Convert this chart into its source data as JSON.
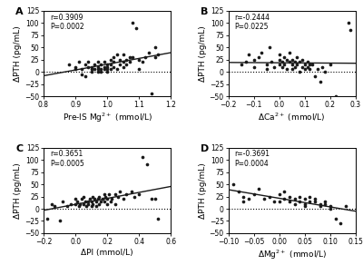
{
  "panels": [
    {
      "label": "A",
      "r": "r=0.3909",
      "p": "P=0.0002",
      "xlabel": "Pre-IS Mg$^{2+}$ (mmol/L)",
      "ylabel": "ΔPTH (pg/mL)",
      "xlim": [
        0.8,
        1.2
      ],
      "ylim": [
        -50,
        125
      ],
      "yticks": [
        -50,
        -25,
        0,
        25,
        50,
        75,
        100,
        125
      ],
      "xticks": [
        0.8,
        0.9,
        1.0,
        1.1,
        1.2
      ],
      "x": [
        0.88,
        0.9,
        0.9,
        0.91,
        0.92,
        0.92,
        0.93,
        0.93,
        0.94,
        0.94,
        0.95,
        0.95,
        0.95,
        0.96,
        0.96,
        0.97,
        0.97,
        0.97,
        0.97,
        0.98,
        0.98,
        0.98,
        0.99,
        0.99,
        0.99,
        1.0,
        1.0,
        1.0,
        1.0,
        1.01,
        1.01,
        1.01,
        1.02,
        1.02,
        1.02,
        1.03,
        1.03,
        1.04,
        1.04,
        1.05,
        1.05,
        1.05,
        1.06,
        1.06,
        1.07,
        1.07,
        1.08,
        1.08,
        1.09,
        1.1,
        1.1,
        1.11,
        1.12,
        1.13,
        1.14,
        1.15,
        1.15,
        1.16
      ],
      "y": [
        15,
        5,
        10,
        20,
        -5,
        5,
        15,
        -10,
        10,
        20,
        0,
        10,
        5,
        15,
        5,
        5,
        20,
        10,
        0,
        15,
        5,
        0,
        10,
        20,
        5,
        15,
        5,
        0,
        10,
        25,
        15,
        5,
        20,
        10,
        30,
        35,
        5,
        25,
        15,
        20,
        35,
        10,
        25,
        15,
        30,
        20,
        30,
        100,
        90,
        25,
        5,
        20,
        30,
        40,
        -45,
        50,
        30,
        35
      ]
    },
    {
      "label": "B",
      "r": "r=-0.2444",
      "p": "P=0.0225",
      "xlabel": "ΔCa$^{2+}$ (mmol/L)",
      "ylabel": "ΔPTH (pg/mL)",
      "xlim": [
        -0.2,
        0.3
      ],
      "ylim": [
        -50,
        125
      ],
      "yticks": [
        -50,
        -25,
        0,
        25,
        50,
        75,
        100,
        125
      ],
      "xticks": [
        -0.2,
        -0.1,
        0.0,
        0.1,
        0.2,
        0.3
      ],
      "x": [
        -0.15,
        -0.13,
        -0.12,
        -0.1,
        -0.1,
        -0.08,
        -0.07,
        -0.05,
        -0.05,
        -0.04,
        -0.03,
        -0.02,
        0.0,
        0.0,
        0.0,
        0.01,
        0.01,
        0.02,
        0.02,
        0.03,
        0.03,
        0.04,
        0.04,
        0.05,
        0.05,
        0.05,
        0.06,
        0.06,
        0.07,
        0.07,
        0.08,
        0.08,
        0.09,
        0.09,
        0.1,
        0.1,
        0.11,
        0.11,
        0.12,
        0.12,
        0.13,
        0.14,
        0.15,
        0.16,
        0.17,
        0.18,
        0.2,
        0.22,
        0.27,
        0.28
      ],
      "y": [
        15,
        20,
        35,
        10,
        25,
        30,
        40,
        15,
        5,
        50,
        20,
        10,
        35,
        15,
        25,
        20,
        10,
        30,
        15,
        25,
        5,
        20,
        40,
        15,
        25,
        5,
        20,
        10,
        30,
        15,
        20,
        0,
        25,
        10,
        15,
        5,
        20,
        10,
        15,
        5,
        15,
        -10,
        5,
        -20,
        10,
        0,
        15,
        -50,
        100,
        85
      ]
    },
    {
      "label": "C",
      "r": "r=0.3651",
      "p": "P=0.0005",
      "xlabel": "ΔPI (mmol/L)",
      "ylabel": "ΔPTH (pg/mL)",
      "xlim": [
        -0.2,
        0.6
      ],
      "ylim": [
        -50,
        125
      ],
      "yticks": [
        -50,
        -25,
        0,
        25,
        50,
        75,
        100,
        125
      ],
      "xticks": [
        -0.2,
        0.0,
        0.2,
        0.4,
        0.6
      ],
      "x": [
        -0.18,
        -0.15,
        -0.13,
        -0.1,
        -0.08,
        -0.05,
        -0.03,
        0.0,
        0.0,
        0.01,
        0.02,
        0.03,
        0.04,
        0.05,
        0.05,
        0.06,
        0.07,
        0.08,
        0.08,
        0.09,
        0.1,
        0.1,
        0.11,
        0.11,
        0.12,
        0.13,
        0.13,
        0.14,
        0.15,
        0.15,
        0.16,
        0.17,
        0.18,
        0.18,
        0.19,
        0.2,
        0.2,
        0.21,
        0.22,
        0.23,
        0.25,
        0.25,
        0.27,
        0.28,
        0.3,
        0.32,
        0.35,
        0.37,
        0.4,
        0.42,
        0.45,
        0.48,
        0.5,
        0.52
      ],
      "y": [
        -20,
        10,
        5,
        -25,
        15,
        5,
        10,
        20,
        10,
        15,
        5,
        10,
        20,
        10,
        25,
        15,
        5,
        15,
        10,
        20,
        15,
        5,
        25,
        10,
        20,
        15,
        5,
        20,
        10,
        25,
        15,
        20,
        30,
        15,
        25,
        20,
        10,
        30,
        15,
        20,
        30,
        10,
        25,
        35,
        20,
        30,
        35,
        25,
        30,
        105,
        90,
        20,
        20,
        -20
      ]
    },
    {
      "label": "D",
      "r": "r=-0.3691",
      "p": "P=0.0004",
      "xlabel": "ΔMg$^{2+}$ (mmol/L)",
      "ylabel": "ΔPTH (pg/mL)",
      "xlim": [
        -0.1,
        0.15
      ],
      "ylim": [
        -50,
        125
      ],
      "yticks": [
        -50,
        -25,
        0,
        25,
        50,
        75,
        100,
        125
      ],
      "xticks": [
        -0.1,
        -0.05,
        0.0,
        0.05,
        0.1,
        0.15
      ],
      "x": [
        -0.09,
        -0.08,
        -0.07,
        -0.07,
        -0.06,
        -0.05,
        -0.04,
        -0.03,
        -0.02,
        -0.01,
        0.0,
        0.0,
        0.01,
        0.01,
        0.02,
        0.02,
        0.03,
        0.03,
        0.04,
        0.04,
        0.05,
        0.05,
        0.05,
        0.06,
        0.06,
        0.07,
        0.07,
        0.08,
        0.08,
        0.09,
        0.09,
        0.1,
        0.1,
        0.11,
        0.12,
        0.13
      ],
      "y": [
        50,
        35,
        15,
        25,
        20,
        30,
        40,
        20,
        25,
        15,
        30,
        15,
        20,
        35,
        25,
        15,
        20,
        10,
        25,
        15,
        10,
        20,
        5,
        15,
        25,
        20,
        15,
        10,
        5,
        15,
        10,
        5,
        0,
        -20,
        -30,
        5
      ]
    }
  ],
  "dot_color": "#1a1a1a",
  "line_color": "#1a1a1a",
  "dot_size": 7,
  "background_color": "#ffffff"
}
